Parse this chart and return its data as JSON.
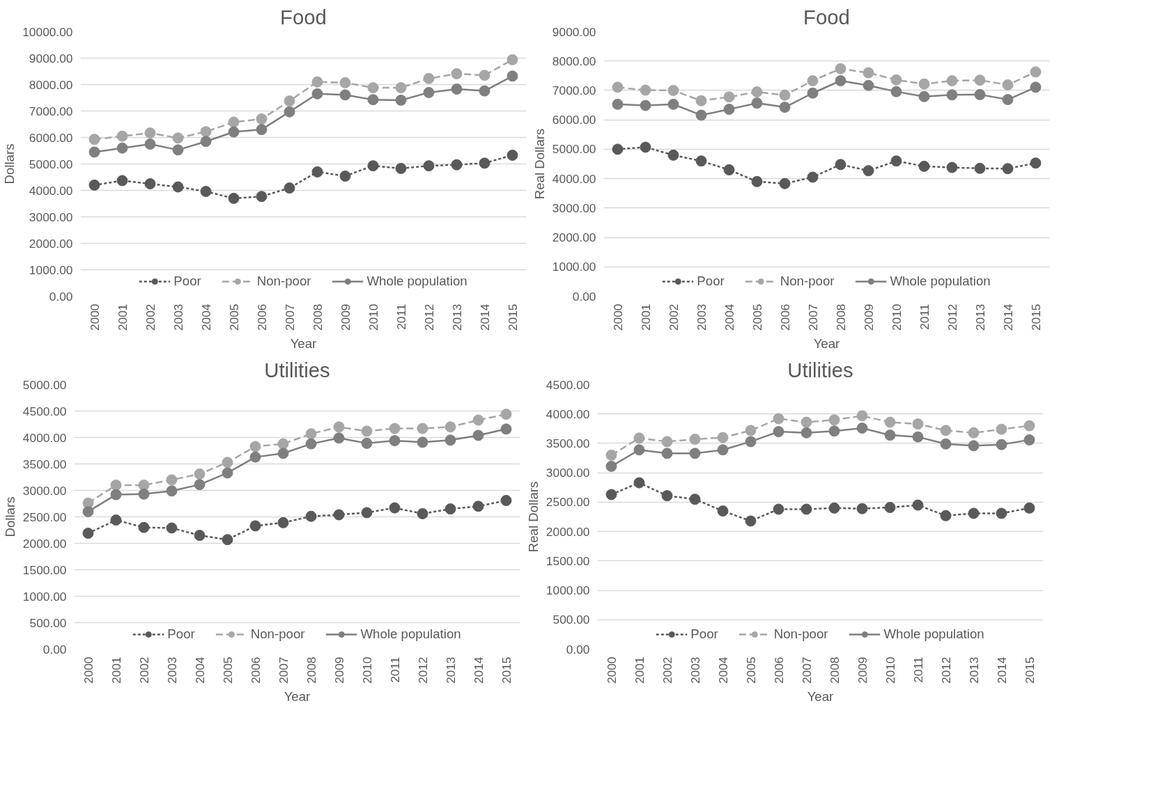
{
  "chart_data": [
    {
      "type": "line",
      "title": "Food",
      "xlabel": "Year",
      "ylabel": "Dollars",
      "categories": [
        "2000",
        "2001",
        "2002",
        "2003",
        "2004",
        "2005",
        "2006",
        "2007",
        "2008",
        "2009",
        "2010",
        "2011",
        "2012",
        "2013",
        "2014",
        "2015"
      ],
      "ylim": [
        0,
        10000
      ],
      "yticks": [
        {
          "value": 0,
          "label": "0.00"
        },
        {
          "value": 1000,
          "label": "1000.00"
        },
        {
          "value": 2000,
          "label": "2000.00"
        },
        {
          "value": 3000,
          "label": "3000.00"
        },
        {
          "value": 4000,
          "label": "4000.00"
        },
        {
          "value": 5000,
          "label": "5000.00"
        },
        {
          "value": 6000,
          "label": "6000.00"
        },
        {
          "value": 7000,
          "label": "7000.00"
        },
        {
          "value": 8000,
          "label": "8000.00"
        },
        {
          "value": 9000,
          "label": "9000.00"
        },
        {
          "value": 10000,
          "label": "10000.00"
        }
      ],
      "grid": "y",
      "legend": "bottom",
      "marker": "circle",
      "series": [
        {
          "name": "Poor",
          "color": "#595959",
          "line_style": "dotted",
          "values": [
            4200,
            4370,
            4250,
            4130,
            3960,
            3700,
            3770,
            4090,
            4700,
            4540,
            4930,
            4830,
            4930,
            4970,
            5030,
            5330
          ]
        },
        {
          "name": "Non-poor",
          "color": "#a6a6a6",
          "line_style": "dashed",
          "values": [
            5930,
            6050,
            6170,
            5980,
            6220,
            6580,
            6700,
            7380,
            8100,
            8070,
            7880,
            7880,
            8230,
            8410,
            8350,
            8940
          ]
        },
        {
          "name": "Whole population",
          "color": "#7f7f7f",
          "line_style": "solid",
          "values": [
            5450,
            5600,
            5750,
            5530,
            5850,
            6210,
            6300,
            6970,
            7650,
            7610,
            7430,
            7410,
            7700,
            7830,
            7760,
            8320
          ]
        }
      ]
    },
    {
      "type": "line",
      "title": "Food",
      "xlabel": "Year",
      "ylabel": "Real Dollars",
      "categories": [
        "2000",
        "2001",
        "2002",
        "2003",
        "2004",
        "2005",
        "2006",
        "2007",
        "2008",
        "2009",
        "2010",
        "2011",
        "2012",
        "2013",
        "2014",
        "2015"
      ],
      "ylim": [
        0,
        9000
      ],
      "yticks": [
        {
          "value": 0,
          "label": "0.00"
        },
        {
          "value": 1000,
          "label": "1000.00"
        },
        {
          "value": 2000,
          "label": "2000.00"
        },
        {
          "value": 3000,
          "label": "3000.00"
        },
        {
          "value": 4000,
          "label": "4000.00"
        },
        {
          "value": 5000,
          "label": "5000.00"
        },
        {
          "value": 6000,
          "label": "6000.00"
        },
        {
          "value": 7000,
          "label": "7000.00"
        },
        {
          "value": 8000,
          "label": "8000.00"
        },
        {
          "value": 9000,
          "label": "9000.00"
        }
      ],
      "grid": "y",
      "legend": "bottom",
      "marker": "circle",
      "series": [
        {
          "name": "Poor",
          "color": "#595959",
          "line_style": "dotted",
          "values": [
            5000,
            5070,
            4800,
            4600,
            4300,
            3900,
            3830,
            4050,
            4480,
            4270,
            4600,
            4420,
            4380,
            4350,
            4340,
            4530
          ]
        },
        {
          "name": "Non-poor",
          "color": "#a6a6a6",
          "line_style": "dashed",
          "values": [
            7110,
            7010,
            7000,
            6650,
            6780,
            6950,
            6840,
            7330,
            7740,
            7600,
            7360,
            7220,
            7330,
            7350,
            7190,
            7630
          ]
        },
        {
          "name": "Whole population",
          "color": "#7f7f7f",
          "line_style": "solid",
          "values": [
            6530,
            6490,
            6530,
            6160,
            6360,
            6570,
            6430,
            6910,
            7330,
            7170,
            6960,
            6790,
            6850,
            6860,
            6690,
            7110
          ]
        }
      ]
    },
    {
      "type": "line",
      "title": "Utilities",
      "xlabel": "Year",
      "ylabel": "Dollars",
      "categories": [
        "2000",
        "2001",
        "2002",
        "2003",
        "2004",
        "2005",
        "2006",
        "2007",
        "2008",
        "2009",
        "2010",
        "2011",
        "2012",
        "2013",
        "2014",
        "2015"
      ],
      "ylim": [
        0,
        5000
      ],
      "yticks": [
        {
          "value": 0,
          "label": "0.00"
        },
        {
          "value": 500,
          "label": "500.00"
        },
        {
          "value": 1000,
          "label": "1000.00"
        },
        {
          "value": 1500,
          "label": "1500.00"
        },
        {
          "value": 2000,
          "label": "2000.00"
        },
        {
          "value": 2500,
          "label": "2500.00"
        },
        {
          "value": 3000,
          "label": "3000.00"
        },
        {
          "value": 3500,
          "label": "3500.00"
        },
        {
          "value": 4000,
          "label": "4000.00"
        },
        {
          "value": 4500,
          "label": "4500.00"
        },
        {
          "value": 5000,
          "label": "5000.00"
        }
      ],
      "grid": "y",
      "legend": "bottom",
      "marker": "circle",
      "series": [
        {
          "name": "Poor",
          "color": "#595959",
          "line_style": "dotted",
          "values": [
            2190,
            2440,
            2300,
            2290,
            2150,
            2070,
            2330,
            2390,
            2510,
            2540,
            2580,
            2670,
            2560,
            2650,
            2700,
            2810
          ]
        },
        {
          "name": "Non-poor",
          "color": "#a6a6a6",
          "line_style": "dashed",
          "values": [
            2760,
            3100,
            3100,
            3200,
            3310,
            3530,
            3830,
            3880,
            4070,
            4200,
            4120,
            4170,
            4170,
            4200,
            4330,
            4440
          ]
        },
        {
          "name": "Whole population",
          "color": "#7f7f7f",
          "line_style": "solid",
          "values": [
            2600,
            2920,
            2930,
            2990,
            3110,
            3330,
            3630,
            3700,
            3880,
            3990,
            3890,
            3940,
            3910,
            3950,
            4040,
            4160
          ]
        }
      ]
    },
    {
      "type": "line",
      "title": "Utilities",
      "xlabel": "Year",
      "ylabel": "Real Dollars",
      "categories": [
        "2000",
        "2001",
        "2002",
        "2003",
        "2004",
        "2005",
        "2006",
        "2007",
        "2008",
        "2009",
        "2010",
        "2011",
        "2012",
        "2013",
        "2014",
        "2015"
      ],
      "ylim": [
        0,
        4500
      ],
      "yticks": [
        {
          "value": 0,
          "label": "0.00"
        },
        {
          "value": 500,
          "label": "500.00"
        },
        {
          "value": 1000,
          "label": "1000.00"
        },
        {
          "value": 1500,
          "label": "1500.00"
        },
        {
          "value": 2000,
          "label": "2000.00"
        },
        {
          "value": 2500,
          "label": "2500.00"
        },
        {
          "value": 3000,
          "label": "3000.00"
        },
        {
          "value": 3500,
          "label": "3500.00"
        },
        {
          "value": 4000,
          "label": "4000.00"
        },
        {
          "value": 4500,
          "label": "4500.00"
        }
      ],
      "grid": "y",
      "legend": "bottom",
      "marker": "circle",
      "series": [
        {
          "name": "Poor",
          "color": "#595959",
          "line_style": "dotted",
          "values": [
            2630,
            2830,
            2610,
            2550,
            2350,
            2180,
            2380,
            2380,
            2400,
            2390,
            2410,
            2450,
            2270,
            2310,
            2310,
            2400
          ]
        },
        {
          "name": "Non-poor",
          "color": "#a6a6a6",
          "line_style": "dashed",
          "values": [
            3300,
            3590,
            3530,
            3570,
            3600,
            3720,
            3920,
            3860,
            3900,
            3970,
            3860,
            3830,
            3720,
            3680,
            3740,
            3800
          ]
        },
        {
          "name": "Whole population",
          "color": "#7f7f7f",
          "line_style": "solid",
          "values": [
            3110,
            3390,
            3330,
            3330,
            3390,
            3530,
            3700,
            3680,
            3710,
            3760,
            3640,
            3610,
            3490,
            3460,
            3480,
            3560
          ]
        }
      ]
    }
  ]
}
